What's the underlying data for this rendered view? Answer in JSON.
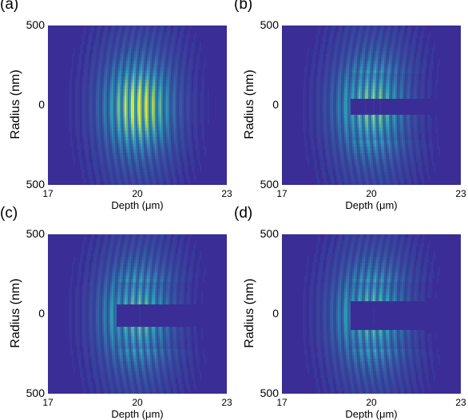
{
  "figure": {
    "panels": [
      {
        "label": "(a)",
        "cutoff": 0.0,
        "gap": 0.0
      },
      {
        "label": "(b)",
        "cutoff": 0.35,
        "gap": 0.04
      },
      {
        "label": "(c)",
        "cutoff": 0.45,
        "gap": 0.06
      },
      {
        "label": "(d)",
        "cutoff": 0.45,
        "gap": 0.08
      }
    ],
    "ylabel": "Radius (nm)",
    "xlabel": "Depth (μm)",
    "yticks": [
      "500",
      "0",
      "500"
    ],
    "xticks": [
      "17",
      "20",
      "23"
    ]
  },
  "chart_data": {
    "type": "heatmap",
    "x_range": [
      17,
      23
    ],
    "y_range": [
      -500,
      500
    ],
    "colors": {
      "low": "#3a2d96",
      "mid": "#2aa0b5",
      "high": "#e8e32c"
    }
  }
}
